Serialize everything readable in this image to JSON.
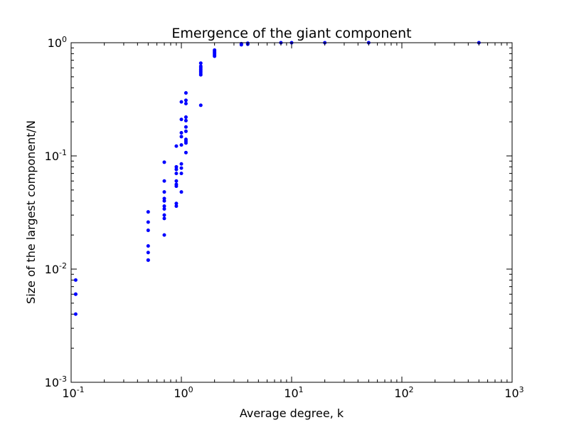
{
  "chart_data": {
    "type": "scatter",
    "title": "Emergence of the giant component",
    "xlabel": "Average degree, k",
    "ylabel": "Size of the largest component/N",
    "xscale": "log",
    "yscale": "log",
    "xlim": [
      0.1,
      1000
    ],
    "ylim": [
      0.001,
      1
    ],
    "grid": false,
    "marker_color": "#0000ff",
    "x_ticks": [
      {
        "base": "10",
        "exp": "-1"
      },
      {
        "base": "10",
        "exp": "0"
      },
      {
        "base": "10",
        "exp": "1"
      },
      {
        "base": "10",
        "exp": "2"
      },
      {
        "base": "10",
        "exp": "3"
      }
    ],
    "y_ticks": [
      {
        "base": "10",
        "exp": "-3"
      },
      {
        "base": "10",
        "exp": "-2"
      },
      {
        "base": "10",
        "exp": "-1"
      },
      {
        "base": "10",
        "exp": "0"
      }
    ],
    "points": [
      [
        0.11,
        0.008
      ],
      [
        0.11,
        0.006
      ],
      [
        0.11,
        0.006
      ],
      [
        0.11,
        0.004
      ],
      [
        0.5,
        0.032
      ],
      [
        0.5,
        0.026
      ],
      [
        0.5,
        0.022
      ],
      [
        0.5,
        0.016
      ],
      [
        0.5,
        0.014
      ],
      [
        0.5,
        0.012
      ],
      [
        0.5,
        0.012
      ],
      [
        0.7,
        0.088
      ],
      [
        0.7,
        0.06
      ],
      [
        0.7,
        0.048
      ],
      [
        0.7,
        0.042
      ],
      [
        0.7,
        0.04
      ],
      [
        0.7,
        0.036
      ],
      [
        0.7,
        0.034
      ],
      [
        0.7,
        0.03
      ],
      [
        0.7,
        0.028
      ],
      [
        0.7,
        0.02
      ],
      [
        0.9,
        0.122
      ],
      [
        0.9,
        0.08
      ],
      [
        0.9,
        0.076
      ],
      [
        0.9,
        0.07
      ],
      [
        0.9,
        0.06
      ],
      [
        0.9,
        0.056
      ],
      [
        0.9,
        0.054
      ],
      [
        0.9,
        0.038
      ],
      [
        0.9,
        0.036
      ],
      [
        1.0,
        0.3
      ],
      [
        1.0,
        0.21
      ],
      [
        1.0,
        0.16
      ],
      [
        1.0,
        0.148
      ],
      [
        1.0,
        0.125
      ],
      [
        1.0,
        0.085
      ],
      [
        1.0,
        0.078
      ],
      [
        1.0,
        0.07
      ],
      [
        1.0,
        0.048
      ],
      [
        1.1,
        0.36
      ],
      [
        1.1,
        0.31
      ],
      [
        1.1,
        0.29
      ],
      [
        1.1,
        0.22
      ],
      [
        1.1,
        0.205
      ],
      [
        1.1,
        0.18
      ],
      [
        1.1,
        0.165
      ],
      [
        1.1,
        0.14
      ],
      [
        1.1,
        0.135
      ],
      [
        1.1,
        0.13
      ],
      [
        1.1,
        0.107
      ],
      [
        1.5,
        0.66
      ],
      [
        1.5,
        0.62
      ],
      [
        1.5,
        0.6
      ],
      [
        1.5,
        0.58
      ],
      [
        1.5,
        0.56
      ],
      [
        1.5,
        0.54
      ],
      [
        1.5,
        0.52
      ],
      [
        1.5,
        0.28
      ],
      [
        2.0,
        0.86
      ],
      [
        2.0,
        0.84
      ],
      [
        2.0,
        0.82
      ],
      [
        2.0,
        0.8
      ],
      [
        2.0,
        0.78
      ],
      [
        2.0,
        0.76
      ],
      [
        3.5,
        0.98
      ],
      [
        3.5,
        0.96
      ],
      [
        4.0,
        0.99
      ],
      [
        4.0,
        0.97
      ],
      [
        8.0,
        1.0
      ],
      [
        10.0,
        1.0
      ],
      [
        20.0,
        1.0
      ],
      [
        50.0,
        1.0
      ],
      [
        500.0,
        1.0
      ]
    ]
  }
}
